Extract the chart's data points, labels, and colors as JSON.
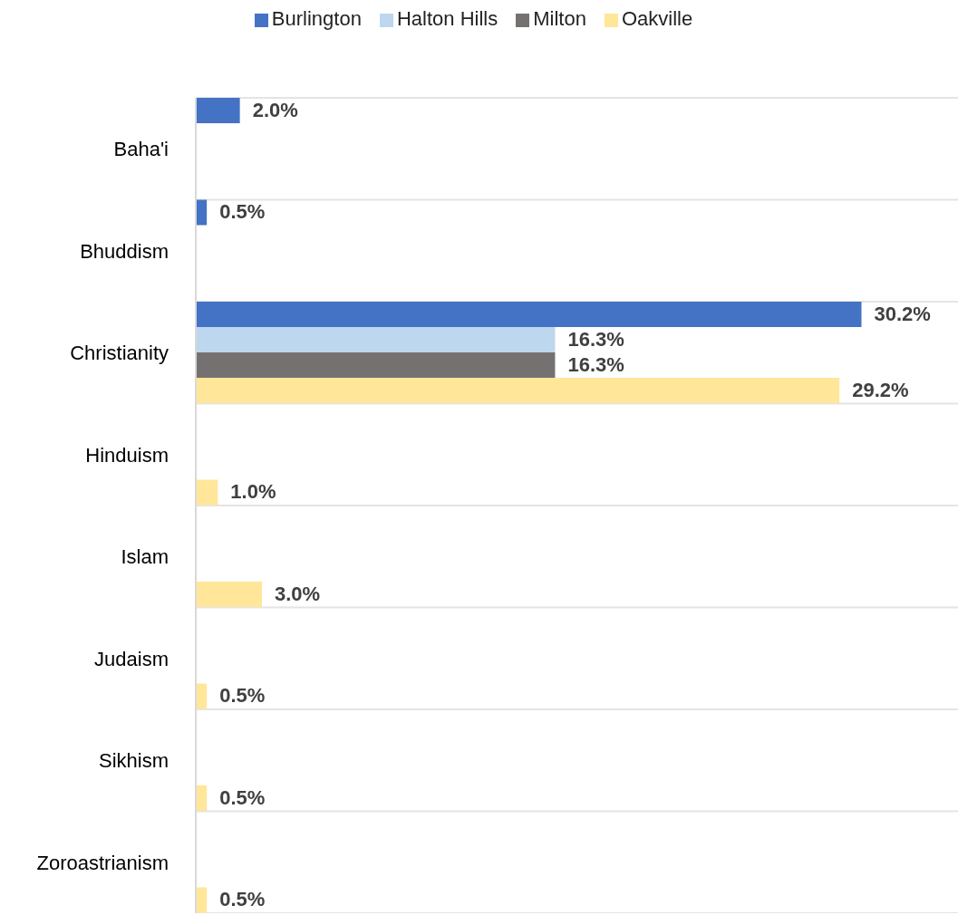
{
  "chart_data": {
    "type": "bar",
    "orientation": "horizontal",
    "categories": [
      "Baha'i",
      "Bhuddism",
      "Christianity",
      "Hinduism",
      "Islam",
      "Judaism",
      "Sikhism",
      "Zoroastrianism"
    ],
    "series": [
      {
        "name": "Burlington",
        "color": "#4472c4",
        "values": [
          2.0,
          0.5,
          30.2,
          null,
          null,
          null,
          null,
          null
        ],
        "value_labels": [
          "2.0%",
          "0.5%",
          "30.2%",
          null,
          null,
          null,
          null,
          null
        ]
      },
      {
        "name": "Halton Hills",
        "color": "#bdd7ee",
        "values": [
          null,
          null,
          16.3,
          null,
          null,
          null,
          null,
          null
        ],
        "value_labels": [
          null,
          null,
          "16.3%",
          null,
          null,
          null,
          null,
          null
        ]
      },
      {
        "name": "Milton",
        "color": "#767171",
        "values": [
          null,
          null,
          16.3,
          null,
          null,
          null,
          null,
          null
        ],
        "value_labels": [
          null,
          null,
          "16.3%",
          null,
          null,
          null,
          null,
          null
        ]
      },
      {
        "name": "Oakville",
        "color": "#ffe699",
        "values": [
          null,
          null,
          29.2,
          1.0,
          3.0,
          0.5,
          0.5,
          0.5
        ],
        "value_labels": [
          null,
          null,
          "29.2%",
          "1.0%",
          "3.0%",
          "0.5%",
          "0.5%",
          "0.5%"
        ]
      }
    ],
    "grid": "y",
    "legend": "top",
    "tick_labels": "y"
  }
}
